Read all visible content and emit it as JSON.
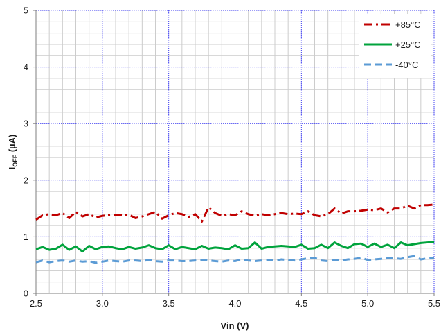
{
  "chart_data": {
    "type": "line",
    "title": "",
    "xlabel": "Vin (V)",
    "ylabel": {
      "main": "I",
      "sub": "OFF",
      "unit": " (µA)"
    },
    "xlim": [
      2.5,
      5.5
    ],
    "ylim": [
      0,
      5
    ],
    "xticks": [
      "2.5",
      "3.0",
      "3.5",
      "4.0",
      "4.5",
      "5.0",
      "5.5"
    ],
    "yticks": [
      "0",
      "1",
      "2",
      "3",
      "4",
      "5"
    ],
    "grid": true,
    "legend_position": "top-right",
    "x": [
      2.5,
      2.55,
      2.6,
      2.65,
      2.7,
      2.75,
      2.8,
      2.85,
      2.9,
      2.95,
      3.0,
      3.05,
      3.1,
      3.15,
      3.2,
      3.25,
      3.3,
      3.35,
      3.4,
      3.45,
      3.5,
      3.55,
      3.6,
      3.65,
      3.7,
      3.75,
      3.8,
      3.85,
      3.9,
      3.95,
      4.0,
      4.05,
      4.1,
      4.15,
      4.2,
      4.25,
      4.3,
      4.35,
      4.4,
      4.45,
      4.5,
      4.55,
      4.6,
      4.65,
      4.7,
      4.75,
      4.8,
      4.85,
      4.9,
      4.95,
      5.0,
      5.05,
      5.1,
      5.15,
      5.2,
      5.25,
      5.3,
      5.35,
      5.4,
      5.45,
      5.5
    ],
    "series": [
      {
        "name": "+85°C",
        "color": "#c00000",
        "dash": "dash-dot",
        "values": [
          1.3,
          1.38,
          1.4,
          1.38,
          1.42,
          1.33,
          1.44,
          1.36,
          1.4,
          1.34,
          1.37,
          1.38,
          1.39,
          1.38,
          1.39,
          1.33,
          1.36,
          1.4,
          1.44,
          1.32,
          1.38,
          1.42,
          1.4,
          1.35,
          1.4,
          1.27,
          1.52,
          1.42,
          1.37,
          1.4,
          1.38,
          1.45,
          1.4,
          1.37,
          1.4,
          1.38,
          1.4,
          1.42,
          1.4,
          1.41,
          1.4,
          1.45,
          1.38,
          1.36,
          1.4,
          1.5,
          1.41,
          1.45,
          1.45,
          1.46,
          1.48,
          1.47,
          1.5,
          1.43,
          1.5,
          1.5,
          1.55,
          1.5,
          1.56,
          1.56,
          1.57
        ]
      },
      {
        "name": "+25°C",
        "color": "#00a33c",
        "dash": "solid",
        "values": [
          0.78,
          0.82,
          0.77,
          0.79,
          0.86,
          0.77,
          0.83,
          0.74,
          0.84,
          0.78,
          0.82,
          0.83,
          0.8,
          0.78,
          0.82,
          0.79,
          0.81,
          0.85,
          0.8,
          0.78,
          0.85,
          0.78,
          0.82,
          0.8,
          0.78,
          0.84,
          0.79,
          0.81,
          0.8,
          0.78,
          0.85,
          0.79,
          0.8,
          0.9,
          0.79,
          0.82,
          0.83,
          0.84,
          0.83,
          0.82,
          0.86,
          0.79,
          0.8,
          0.86,
          0.8,
          0.9,
          0.84,
          0.8,
          0.87,
          0.88,
          0.82,
          0.88,
          0.82,
          0.86,
          0.8,
          0.9,
          0.85,
          0.87,
          0.89,
          0.9,
          0.91
        ]
      },
      {
        "name": "-40°C",
        "color": "#5b9bd5",
        "dash": "dash",
        "values": [
          0.55,
          0.58,
          0.55,
          0.57,
          0.58,
          0.56,
          0.58,
          0.56,
          0.57,
          0.54,
          0.56,
          0.58,
          0.57,
          0.56,
          0.58,
          0.58,
          0.57,
          0.59,
          0.57,
          0.56,
          0.58,
          0.58,
          0.57,
          0.57,
          0.58,
          0.59,
          0.58,
          0.57,
          0.56,
          0.58,
          0.57,
          0.6,
          0.58,
          0.57,
          0.58,
          0.59,
          0.58,
          0.6,
          0.59,
          0.58,
          0.6,
          0.62,
          0.63,
          0.58,
          0.57,
          0.59,
          0.58,
          0.6,
          0.61,
          0.63,
          0.59,
          0.6,
          0.61,
          0.62,
          0.62,
          0.61,
          0.64,
          0.66,
          0.6,
          0.62,
          0.63
        ]
      }
    ]
  }
}
